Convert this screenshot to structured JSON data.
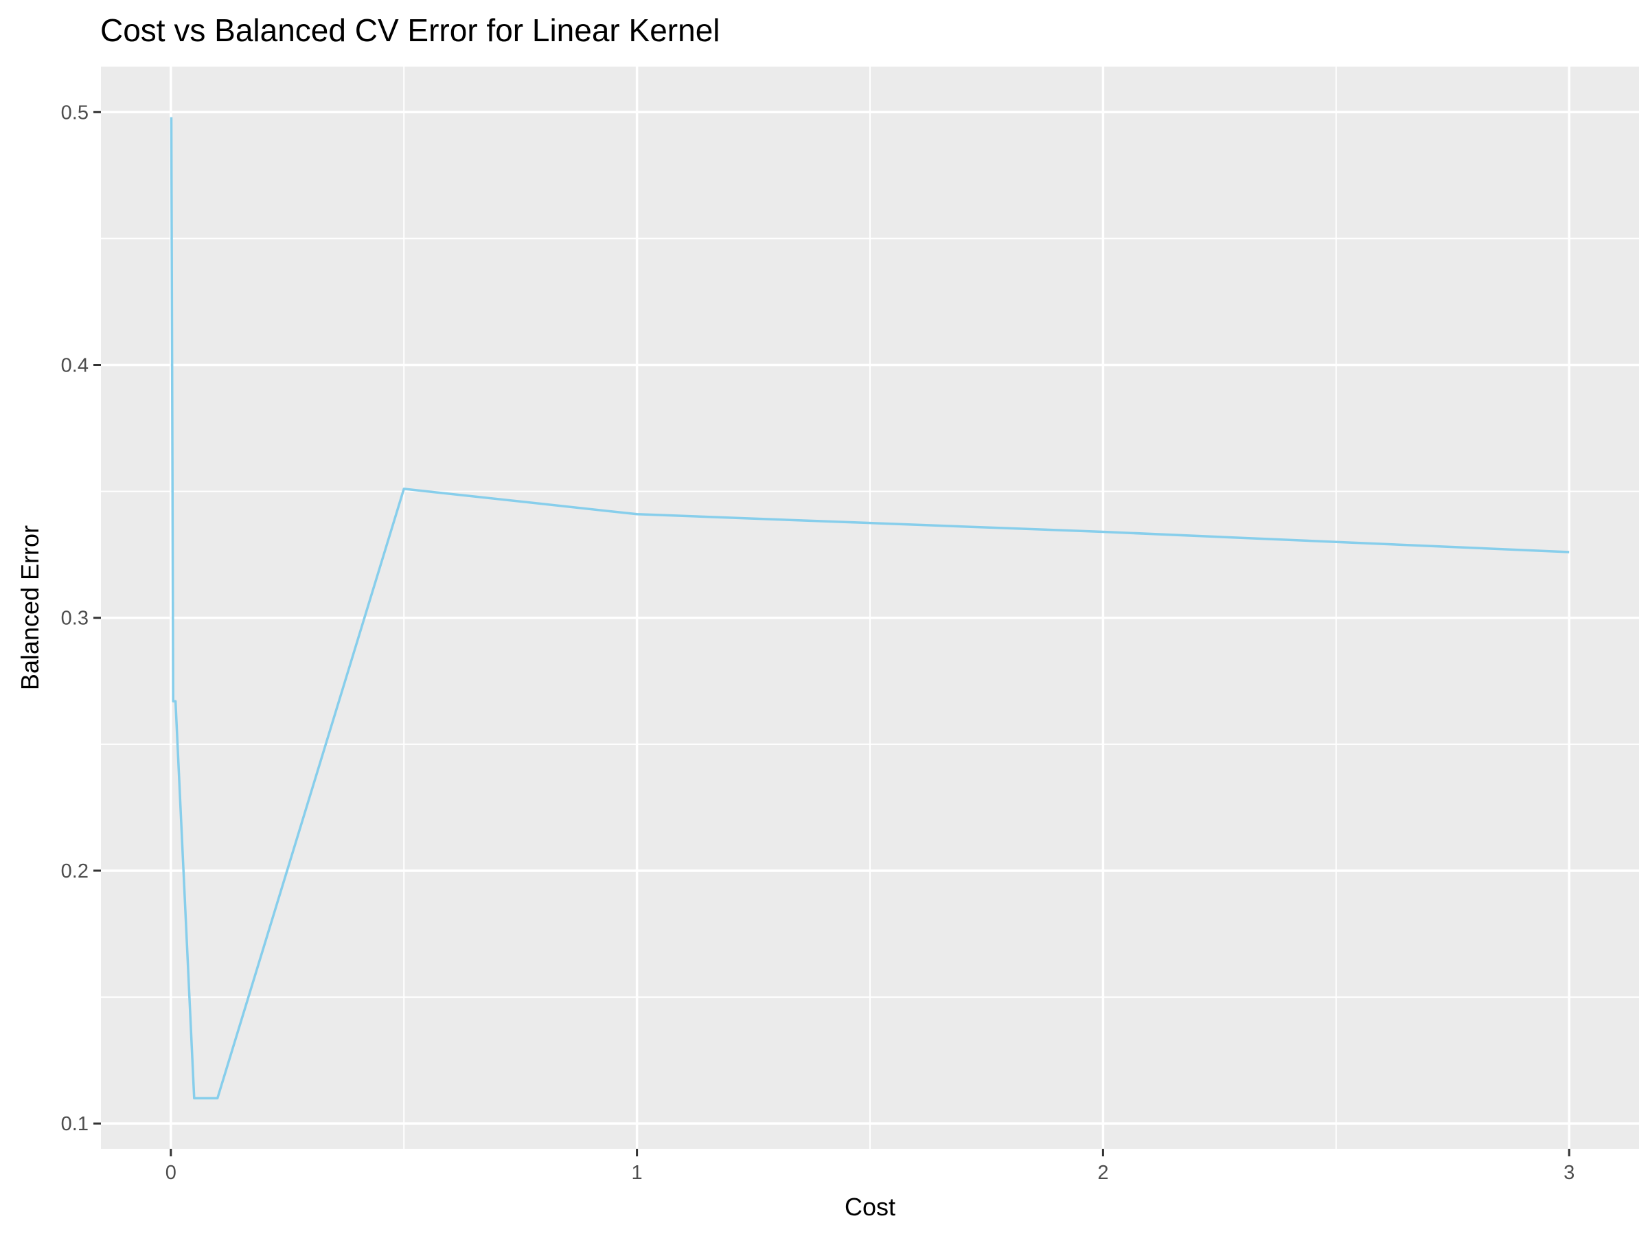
{
  "chart_data": {
    "type": "line",
    "title": "Cost vs Balanced CV Error for Linear Kernel",
    "xlabel": "Cost",
    "ylabel": "Balanced Error",
    "xlim": [
      -0.15,
      3.15
    ],
    "ylim": [
      0.09,
      0.518
    ],
    "x_ticks": [
      0,
      1,
      2,
      3
    ],
    "x_tick_labels": [
      "0",
      "1",
      "2",
      "3"
    ],
    "y_ticks": [
      0.1,
      0.2,
      0.3,
      0.4,
      0.5
    ],
    "y_tick_labels": [
      "0.1",
      "0.2",
      "0.3",
      "0.4",
      "0.5"
    ],
    "x_minor_ticks": [
      0.5,
      1.5,
      2.5
    ],
    "y_minor_ticks": [
      0.15,
      0.25,
      0.35,
      0.45
    ],
    "grid": true,
    "legend": "none",
    "series": [
      {
        "color": "#87CEEB",
        "x": [
          0.001,
          0.005,
          0.01,
          0.05,
          0.1,
          0.5,
          1,
          2,
          3
        ],
        "y": [
          0.498,
          0.267,
          0.267,
          0.11,
          0.11,
          0.351,
          0.341,
          0.334,
          0.326
        ]
      }
    ]
  },
  "colors": {
    "panel_background": "#EBEBEB",
    "grid_major": "#FFFFFF",
    "grid_minor": "#FFFFFF",
    "tick_mark": "#333333"
  }
}
